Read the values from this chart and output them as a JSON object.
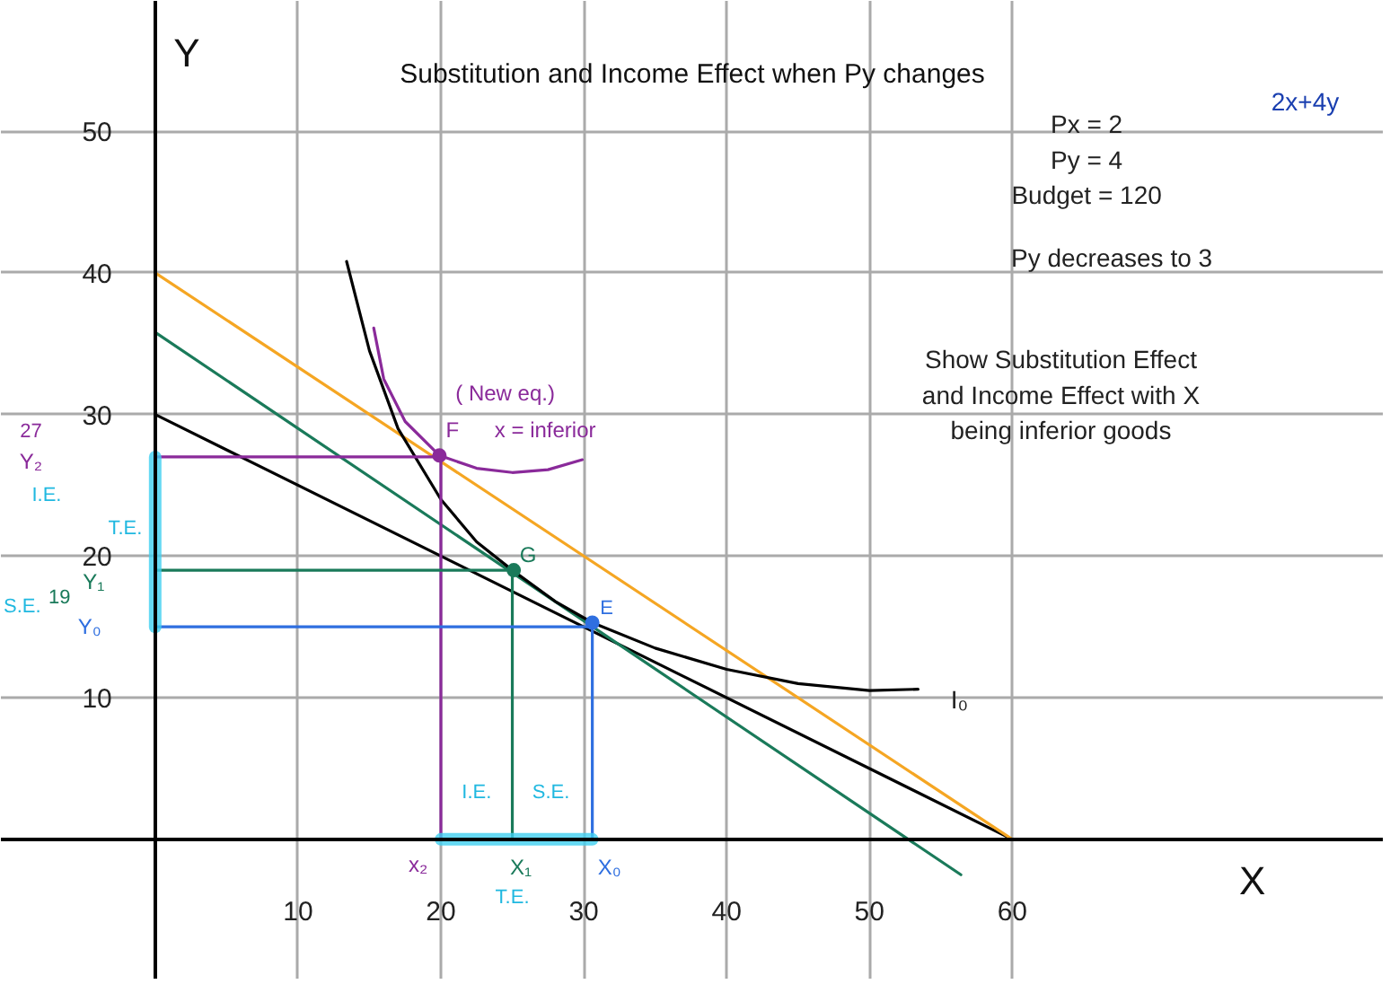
{
  "chart_data": {
    "type": "line",
    "title": "Substitution and Income Effect when Py changes",
    "xlabel": "X",
    "ylabel": "Y",
    "xlim": [
      -10.8,
      86
    ],
    "ylim": [
      -9.9,
      59.2
    ],
    "xticks": [
      10,
      20,
      30,
      40,
      50,
      60
    ],
    "yticks": [
      10,
      20,
      30,
      40,
      50
    ],
    "grid": true,
    "line_style": "solid",
    "marker": "none",
    "series": [
      {
        "color": "#000000",
        "x": [
          0,
          60
        ],
        "values": [
          30,
          0
        ]
      },
      {
        "color": "#f5a623",
        "x": [
          0,
          60
        ],
        "values": [
          40,
          0
        ]
      },
      {
        "color": "#1a7a5a",
        "x": [
          0,
          56.4
        ],
        "values": [
          35.8,
          -2.5
        ]
      },
      {
        "color": "#000000",
        "x": [
          13.4,
          15,
          17,
          20,
          22.5,
          25,
          28,
          30.6,
          35,
          40,
          45,
          50,
          53.4
        ],
        "values": [
          40.8,
          34.5,
          29,
          24,
          21,
          19,
          16.8,
          15.3,
          13.5,
          12,
          11,
          10.5,
          10.6
        ]
      },
      {
        "color": "#8a2a9a",
        "x": [
          15.3,
          16,
          17.5,
          19.9,
          22.5,
          25,
          27.5,
          29.9
        ],
        "values": [
          36.1,
          32.5,
          29.5,
          27.1,
          26.2,
          25.9,
          26.1,
          26.8
        ]
      },
      {
        "color": "#8a2a9a",
        "x": [
          0,
          20,
          20
        ],
        "values": [
          27,
          27,
          0
        ]
      },
      {
        "color": "#1a7a5a",
        "x": [
          0,
          25,
          25
        ],
        "values": [
          19,
          19,
          0
        ]
      },
      {
        "color": "#2f6fe0",
        "x": [
          0,
          30.6,
          30.6
        ],
        "values": [
          15,
          15,
          0
        ]
      },
      {
        "color": "#40d0f0",
        "x": [
          0,
          0
        ],
        "values": [
          15,
          27
        ]
      },
      {
        "color": "#40d0f0",
        "x": [
          20,
          30.6
        ],
        "values": [
          0,
          0
        ]
      },
      {
        "type": "scatter",
        "marker": "circle",
        "color": "#8a2a9a",
        "x": [
          19.9
        ],
        "values": [
          27.1
        ]
      },
      {
        "type": "scatter",
        "marker": "circle",
        "color": "#1a7a5a",
        "x": [
          25.1
        ],
        "values": [
          19
        ]
      },
      {
        "type": "scatter",
        "marker": "circle",
        "color": "#2f6fe0",
        "x": [
          30.6
        ],
        "values": [
          15.3
        ]
      }
    ],
    "annotations": [
      "F",
      "( New eq.)",
      "x = inferior",
      "G",
      "E",
      "I₀",
      "27",
      "Y₂",
      "I.E.",
      "T.E.",
      "Y₁",
      "19",
      "S.E.",
      "Y₀",
      "x₂",
      "X₁",
      "X₀",
      "I.E.",
      "S.E.",
      "T.E.",
      "Px = 2",
      "Py = 4",
      "Budget = 120",
      "2x+4y",
      "Py  decreases to 3",
      "Show Substitution Effect",
      "and Income Effect with X",
      "being inferior goods"
    ]
  }
}
